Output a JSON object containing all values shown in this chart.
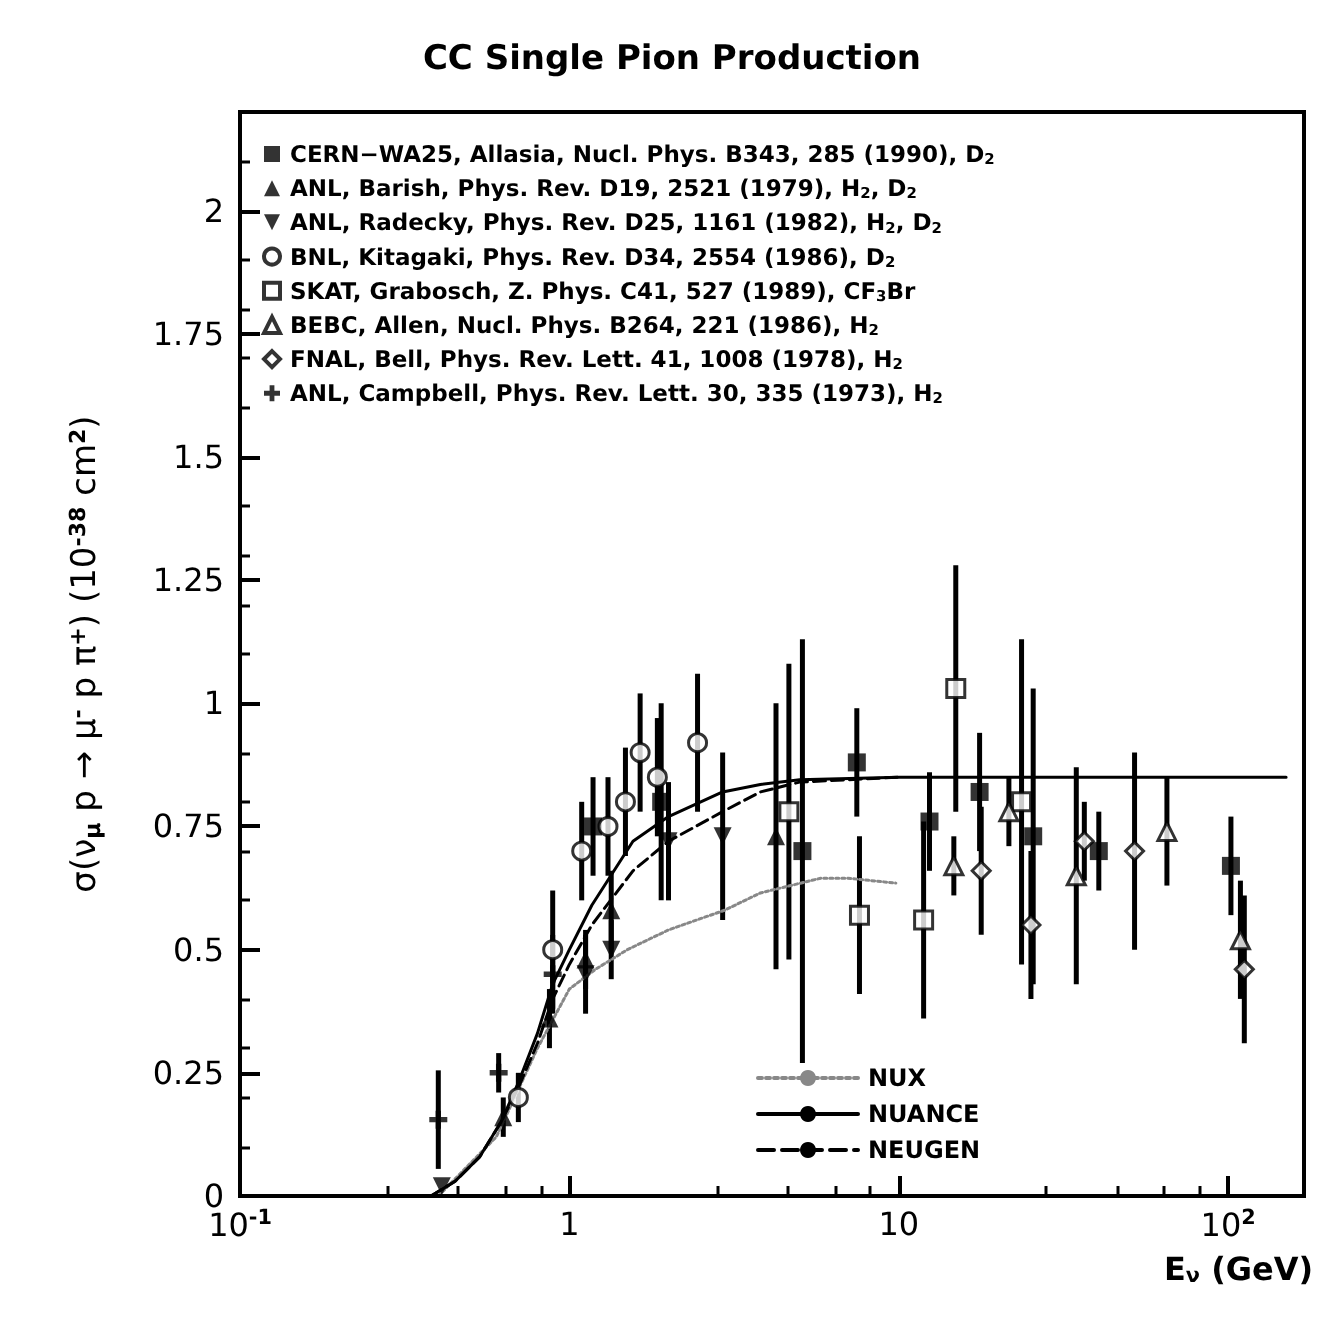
{
  "chart_data": {
    "type": "scatter",
    "title": "CC Single Pion Production",
    "xlabel": "E$_{ν}$ (GeV)",
    "ylabel": "σ(ν$_{μ}$ p → μ$^{-}$ p π$^{+}$) (10$^{-38}$ cm$^{2}$)",
    "log": "x",
    "xlim": [
      0.1,
      170
    ],
    "xticks": [
      {
        "value": 0.1,
        "label": "10$^{-1}$"
      },
      1,
      10,
      {
        "value": 100,
        "label": "10$^{2}$"
      }
    ],
    "ylim": [
      0,
      2.2
    ],
    "yticks": [
      0,
      0.25,
      0.5,
      0.75,
      1,
      1.25,
      1.5,
      1.75,
      2
    ],
    "grid": false,
    "legend": "top left",
    "series": [
      {
        "name": "CERN−WA25, Allasia, Nucl. Phys. B343, 285 (1990), D$_{2}$",
        "color": "#000000",
        "marker": "square",
        "x": [
          1.18,
          1.9,
          5.1,
          7.46,
          12.4,
          17.6,
          25.6,
          40.5,
          102
        ],
        "values": [
          0.75,
          0.8,
          0.7,
          0.88,
          0.76,
          0.82,
          0.73,
          0.7,
          0.67
        ],
        "errors": [
          0.1,
          0.2,
          0.43,
          0.11,
          0.1,
          0.12,
          0.3,
          0.08,
          0.1
        ]
      },
      {
        "name": "ANL, Barish, Phys. Rev. D19, 2521 (1979), H$_{2}$, D$_{2}$",
        "color": "#000000",
        "marker": "triangle",
        "x": [
          0.63,
          0.87,
          1.12,
          1.34,
          4.24
        ],
        "values": [
          0.16,
          0.36,
          0.48,
          0.58,
          0.73
        ],
        "errors": [
          0.04,
          0.06,
          0.06,
          0.08,
          0.27
        ]
      },
      {
        "name": "ANL, Radecky, Phys. Rev. D25, 1161 (1982), H$_{2}$, D$_{2}$",
        "color": "#000000",
        "marker": "triangle-down",
        "x": [
          0.41,
          1.12,
          1.34,
          2.0,
          2.92
        ],
        "values": [
          0.02,
          0.45,
          0.5,
          0.72,
          0.73
        ],
        "errors": [
          null,
          0.08,
          0.06,
          0.12,
          0.17
        ]
      },
      {
        "name": "BNL, Kitagaki, Phys. Rev. D34, 2554 (1986), D$_{2}$",
        "color": "#000000",
        "marker": "circle-open",
        "x": [
          0.7,
          0.89,
          1.09,
          1.31,
          1.48,
          1.64,
          1.85,
          2.45
        ],
        "values": [
          0.2,
          0.5,
          0.7,
          0.75,
          0.8,
          0.9,
          0.85,
          0.92
        ],
        "errors": [
          0.05,
          0.12,
          0.1,
          0.1,
          0.11,
          0.12,
          0.12,
          0.14
        ]
      },
      {
        "name": "SKAT, Grabosch, Z. Phys. C41, 527 (1989), CF$_{3}$Br",
        "color": "#000000",
        "marker": "square-open",
        "x": [
          4.64,
          7.6,
          11.9,
          14.9,
          23.6
        ],
        "values": [
          0.78,
          0.57,
          0.56,
          1.03,
          0.8
        ],
        "errors": [
          0.3,
          0.16,
          0.2,
          0.25,
          0.33
        ]
      },
      {
        "name": "BEBC, Allen, Nucl. Phys. B264, 221 (1986), H$_{2}$",
        "color": "#000000",
        "marker": "triangle-open",
        "x": [
          14.7,
          21.6,
          34.6,
          65.2,
          109
        ],
        "values": [
          0.67,
          0.78,
          0.65,
          0.74,
          0.52
        ],
        "errors": [
          0.06,
          0.07,
          0.22,
          0.11,
          0.12
        ]
      },
      {
        "name": "FNAL, Bell, Phys. Rev. Lett. 41, 1008 (1978), H$_{2}$",
        "color": "#000000",
        "marker": "diamond-open",
        "x": [
          17.8,
          25.2,
          36.6,
          52,
          112
        ],
        "values": [
          0.66,
          0.55,
          0.72,
          0.7,
          0.46
        ],
        "errors": [
          0.13,
          0.15,
          0.08,
          0.2,
          0.15
        ]
      },
      {
        "name": "ANL, Campbell, Phys. Rev. Lett. 30, 335 (1973), H$_{2}$",
        "color": "#000000",
        "marker": "cross",
        "x": [
          0.4,
          0.61,
          0.89
        ],
        "values": [
          0.155,
          0.25,
          0.45
        ],
        "errors": [
          0.1,
          0.04,
          0.08
        ]
      },
      {
        "name": "NUX",
        "type": "line",
        "color": "#888888",
        "line_style": "dotted",
        "marker": "none",
        "x": [
          0.4,
          0.6,
          0.8,
          1.0,
          1.2,
          1.5,
          2,
          2.96,
          3.8,
          5.8,
          7,
          9.8
        ],
        "values": [
          0,
          0.12,
          0.3,
          0.42,
          0.46,
          0.5,
          0.54,
          0.58,
          0.615,
          0.645,
          0.645,
          0.635
        ]
      },
      {
        "name": "NUANCE",
        "type": "line",
        "color": "#000000",
        "line_style": "solid",
        "marker": "none",
        "x": [
          0.38,
          0.45,
          0.535,
          0.62,
          0.7,
          0.8,
          0.89,
          1.0,
          1.17,
          1.56,
          2.0,
          2.92,
          3.8,
          5,
          10,
          150
        ],
        "values": [
          0,
          0.03,
          0.08,
          0.15,
          0.23,
          0.33,
          0.43,
          0.5,
          0.59,
          0.72,
          0.77,
          0.82,
          0.835,
          0.845,
          0.85,
          0.85
        ]
      },
      {
        "name": "NEUGEN",
        "type": "line",
        "color": "#000000",
        "line_style": "dashed",
        "marker": "none",
        "x": [
          0.38,
          0.45,
          0.535,
          0.62,
          0.7,
          0.8,
          0.89,
          1.0,
          1.17,
          1.56,
          2.0,
          2.92,
          3.8,
          5,
          10
        ],
        "values": [
          0,
          0.03,
          0.08,
          0.15,
          0.22,
          0.31,
          0.4,
          0.47,
          0.55,
          0.66,
          0.72,
          0.78,
          0.82,
          0.84,
          0.85
        ]
      }
    ]
  }
}
